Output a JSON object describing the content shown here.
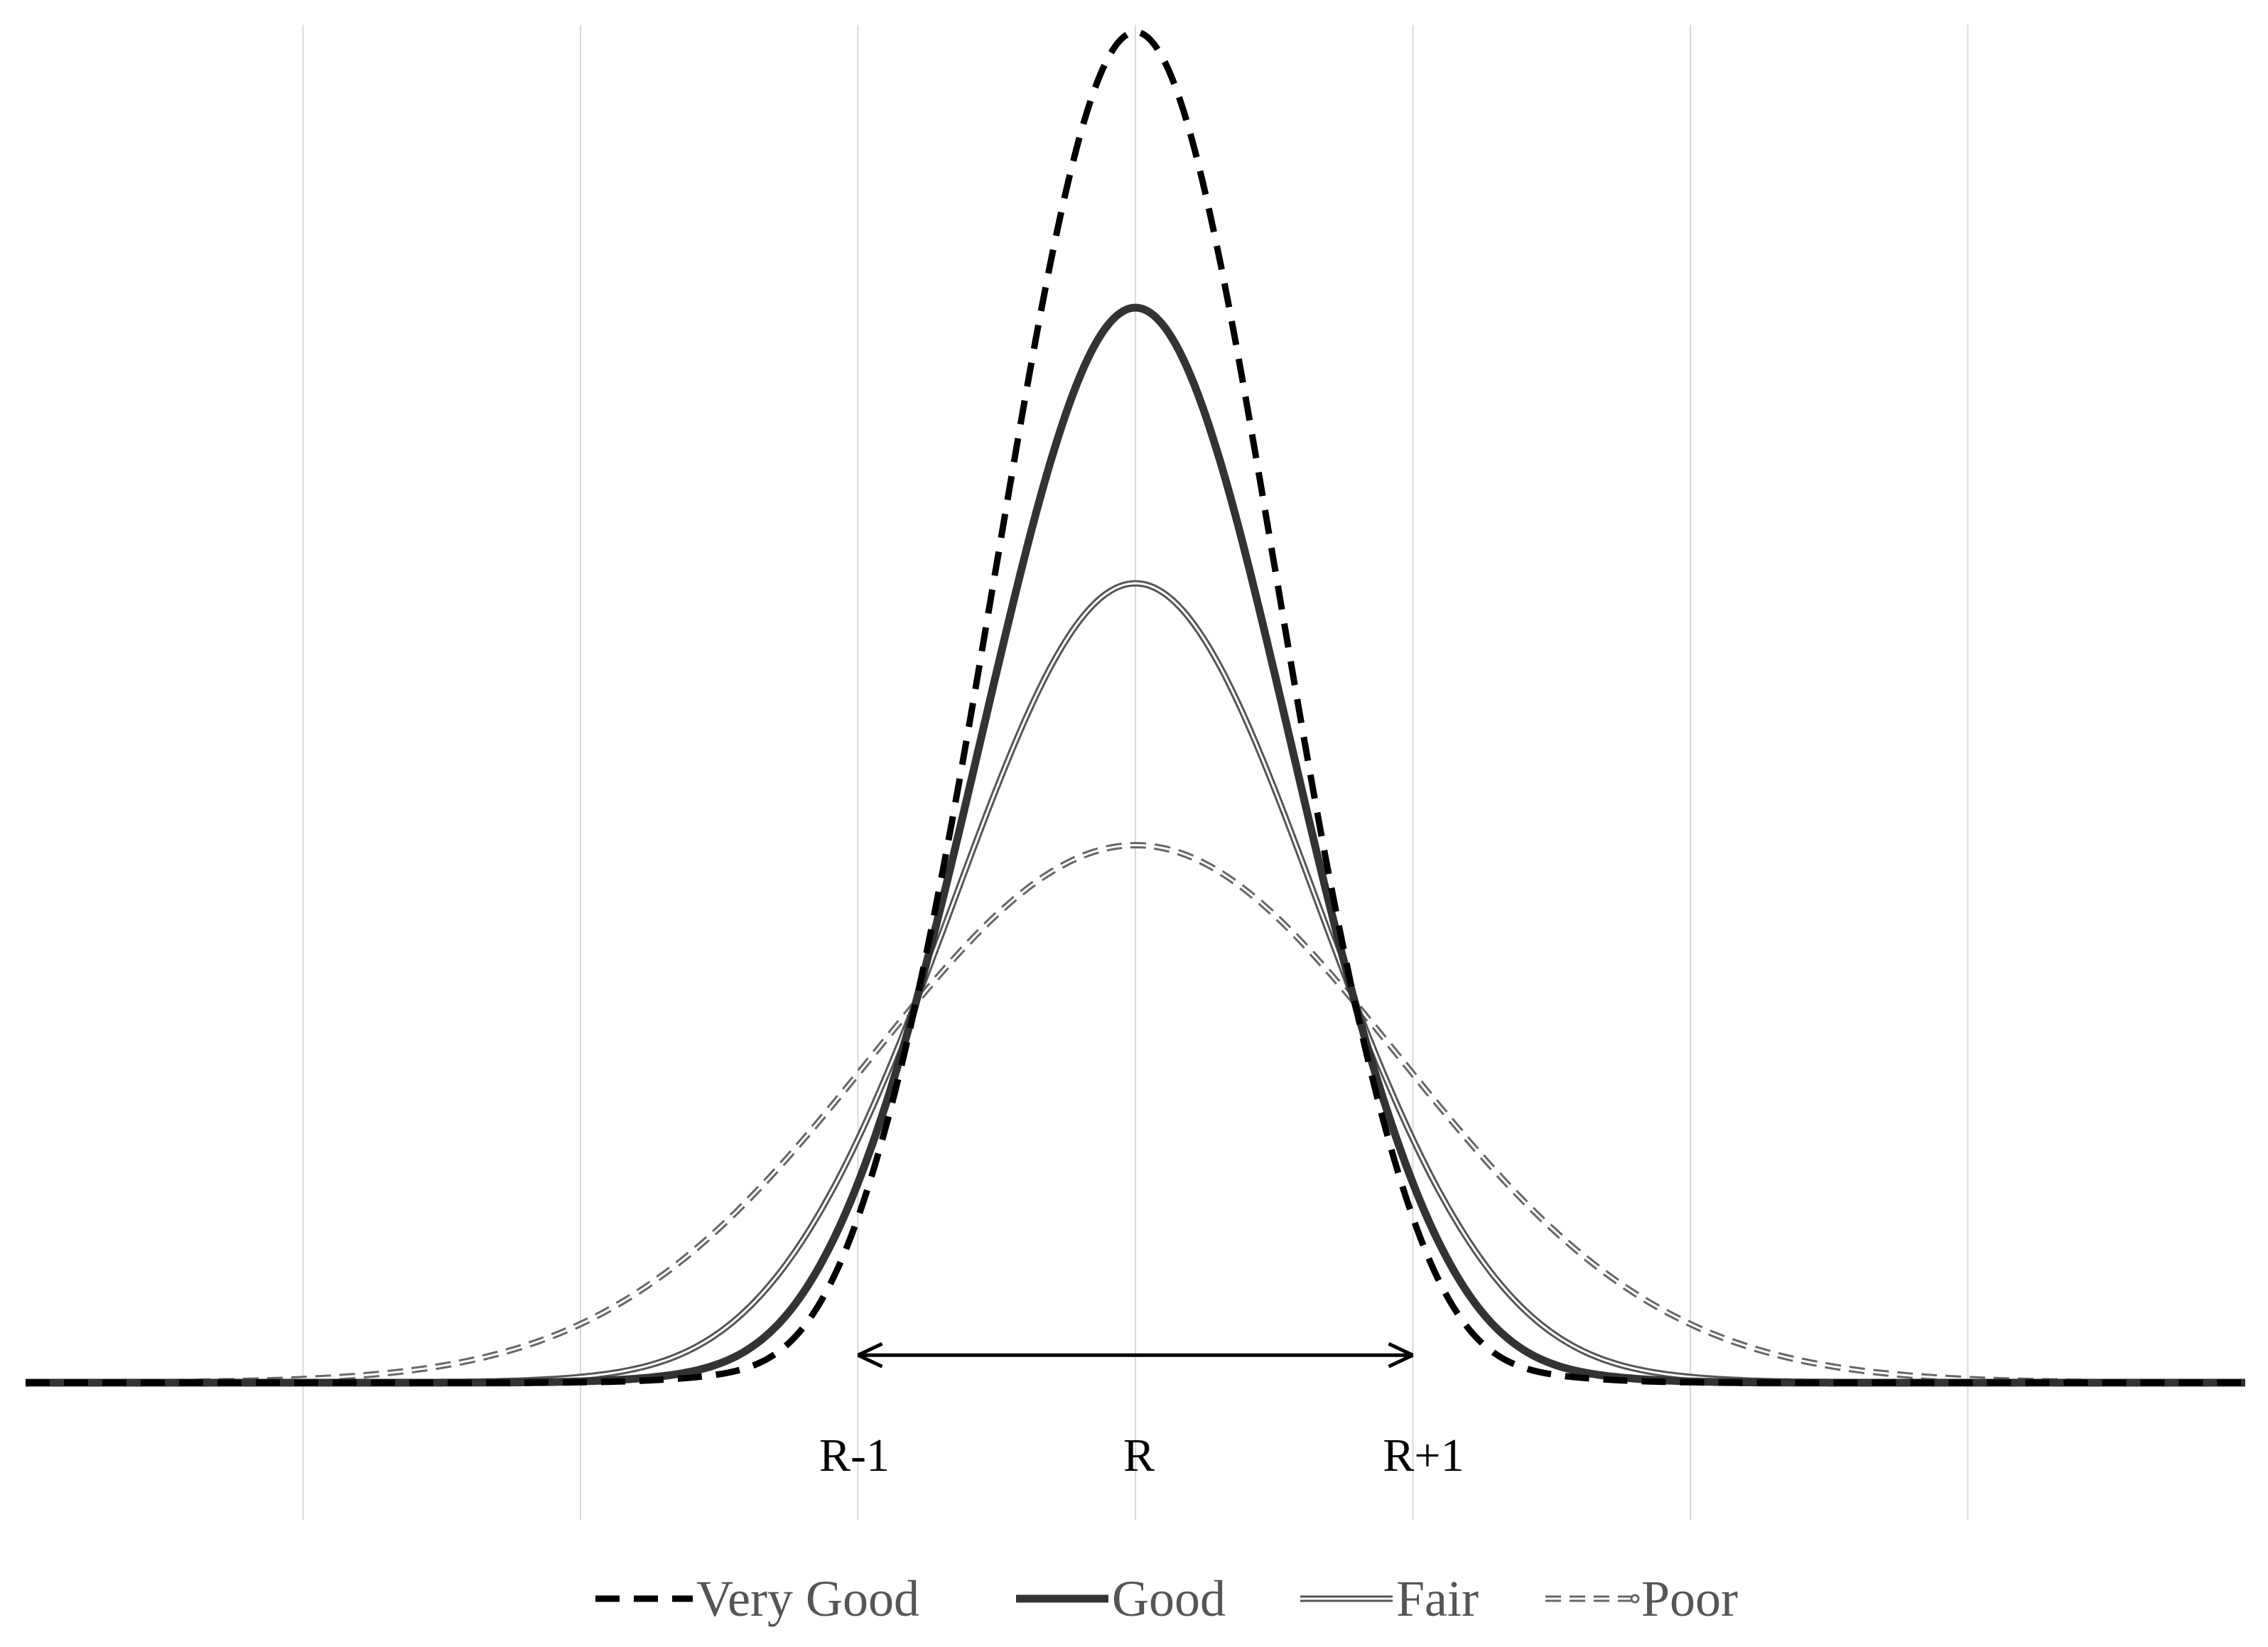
{
  "chart_data": {
    "type": "line",
    "title": "",
    "xlabel": "",
    "ylabel": "",
    "grid": "vertical",
    "legend_position": "bottom",
    "xlim": [
      -4,
      4
    ],
    "ylim": [
      -0.08,
      4.9
    ],
    "gridlines_x": [
      -3,
      -2,
      -1,
      0,
      1,
      2,
      3
    ],
    "tick_labels": [
      {
        "x": -1,
        "label": "R-1"
      },
      {
        "x": 0,
        "label": "R"
      },
      {
        "x": 1,
        "label": "R+1"
      }
    ],
    "annotation": {
      "type": "double-arrow",
      "x_from": -1,
      "x_to": 1,
      "y": 0.1
    },
    "series": [
      {
        "name": "Very Good",
        "style": "dashed-bold",
        "color": "#000000",
        "peak": 4.9,
        "sigma": 0.5,
        "dip": 0.08
      },
      {
        "name": "Good",
        "style": "solid-bold",
        "color": "#333333",
        "peak": 3.9,
        "sigma": 0.55,
        "dip": 0.04
      },
      {
        "name": "Fair",
        "style": "double-line",
        "color": "#555555",
        "peak": 2.9,
        "sigma": 0.65,
        "dip": 0.02
      },
      {
        "name": "Poor",
        "style": "dashed-double",
        "color": "#666666",
        "peak": 1.95,
        "sigma": 0.95,
        "dip": 0.0
      }
    ]
  }
}
